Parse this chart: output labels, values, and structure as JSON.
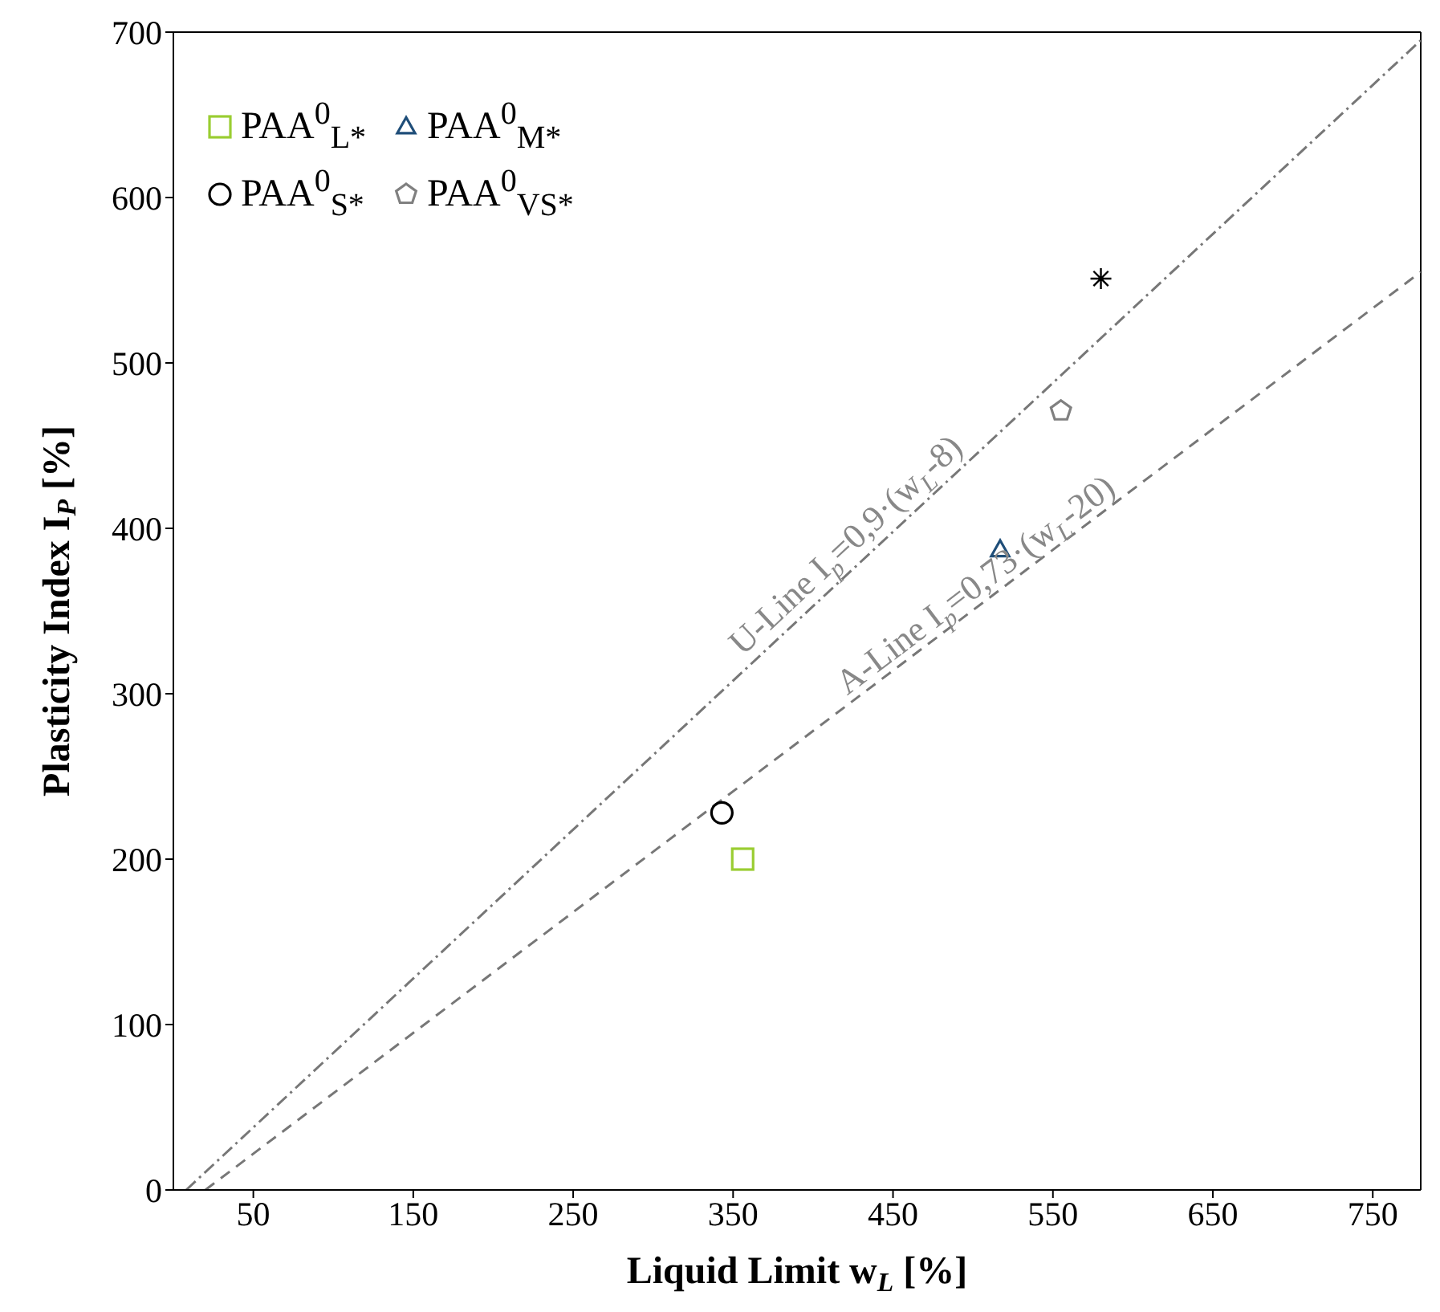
{
  "chart_data": {
    "type": "scatter",
    "xlabel": "Liquid Limit w$_{L}$ [%]",
    "ylabel": "Plasticity Index I$_{P}$ [%]",
    "xlim": [
      0,
      780
    ],
    "xticks": [
      50,
      150,
      250,
      350,
      450,
      550,
      650,
      750
    ],
    "ylim": [
      0,
      700
    ],
    "yticks": [
      0,
      100,
      200,
      300,
      400,
      500,
      600,
      700
    ],
    "grid": false,
    "legend": "top left",
    "series": [
      {
        "color": "#000000",
        "marker": "cross",
        "x": [
          580
        ],
        "values": [
          551
        ]
      },
      {
        "name": "PAA$^{0}$$_{L*}$",
        "color": "#9acd32",
        "marker": "square",
        "x": [
          356
        ],
        "values": [
          200
        ]
      },
      {
        "name": "PAA$^{0}$$_{M*}$",
        "color": "#1f4e79",
        "marker": "triangle",
        "x": [
          517
        ],
        "values": [
          387
        ]
      },
      {
        "name": "PAA$^{0}$$_{S*}$",
        "color": "#000000",
        "marker": "circle",
        "x": [
          343
        ],
        "values": [
          228
        ]
      },
      {
        "name": "PAA$^{0}$$_{VS*}$",
        "color": "#808080",
        "x": [
          555
        ],
        "values": [
          471
        ]
      },
      {
        "type": "line",
        "color": "#777777",
        "line_style": "dashdot",
        "x": [
          8,
          780
        ],
        "values": [
          0,
          695
        ]
      },
      {
        "type": "line",
        "color": "#777777",
        "line_style": "dashed",
        "x": [
          20,
          780
        ],
        "values": [
          0,
          555
        ]
      }
    ],
    "annotations": [
      {
        "text": "U-Line I$_{p}$=0,9·(w$_{L}$-8)",
        "x": 430,
        "y": 380
      },
      {
        "text": "A-Line I$_{p}$=0,73·(w$_{L}$-20)",
        "x": 510,
        "y": 355
      }
    ]
  }
}
